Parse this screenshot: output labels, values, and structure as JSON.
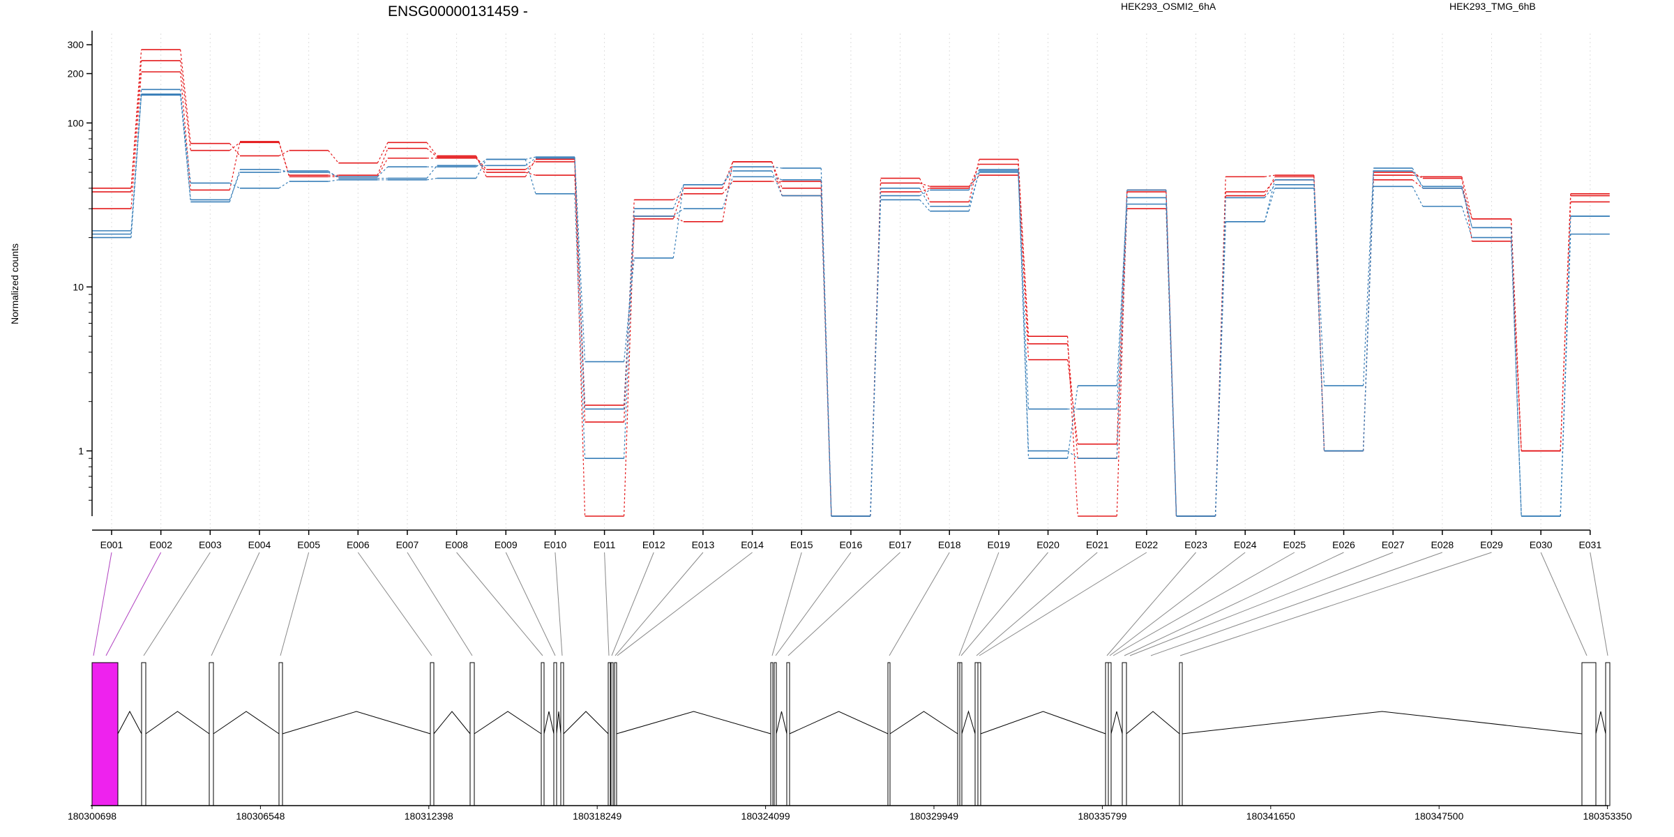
{
  "chart_data": {
    "type": "line",
    "title": "ENSG00000131459 -",
    "ylabel": "Normalized counts",
    "y_scale": "log",
    "ylim": [
      0.4,
      380
    ],
    "y_ticks": [
      {
        "value": 1,
        "label": "1"
      },
      {
        "value": 10,
        "label": "10"
      },
      {
        "value": 100,
        "label": "100"
      },
      {
        "value": 200,
        "label": "200"
      },
      {
        "value": 300,
        "label": "300"
      }
    ],
    "categories": [
      "E001",
      "E002",
      "E003",
      "E004",
      "E005",
      "E006",
      "E007",
      "E008",
      "E009",
      "E010",
      "E011",
      "E012",
      "E013",
      "E014",
      "E015",
      "E016",
      "E017",
      "E018",
      "E019",
      "E020",
      "E021",
      "E022",
      "E023",
      "E024",
      "E025",
      "E026",
      "E027",
      "E028",
      "E029",
      "E030",
      "E031"
    ],
    "legend": [
      "HEK293_OSMI2_6hA",
      "HEK293_TMG_6hB"
    ],
    "legend_colors": [
      "#e41a1c",
      "#377eb8"
    ],
    "legend_position": "top",
    "grid": "vertical dotted",
    "series": [
      {
        "group": 0,
        "color": "#e41a1c",
        "values": [
          40,
          280,
          75,
          63,
          68,
          57,
          76,
          63,
          47,
          60,
          1.5,
          34,
          37,
          44,
          44,
          0.4,
          43,
          41,
          48,
          3.6,
          1.1,
          39,
          0.4,
          36,
          47,
          1.0,
          48,
          47,
          26,
          1.0,
          36
        ]
      },
      {
        "group": 0,
        "color": "#e41a1c",
        "values": [
          38,
          240,
          68,
          76,
          48,
          48,
          70,
          62,
          52,
          58,
          0.4,
          27,
          25,
          58,
          40,
          0.4,
          46,
          33,
          60,
          4.5,
          0.9,
          30,
          0.4,
          47,
          48,
          1.0,
          50,
          46,
          19,
          1.0,
          37
        ]
      },
      {
        "group": 0,
        "color": "#e41a1c",
        "values": [
          30,
          205,
          39,
          77,
          47,
          47,
          61,
          61,
          50,
          48,
          1.9,
          26,
          40,
          58,
          36,
          0.4,
          38,
          40,
          56,
          5.0,
          0.4,
          38,
          0.4,
          38,
          45,
          1.0,
          45,
          40,
          26,
          1.0,
          33
        ]
      },
      {
        "group": 1,
        "color": "#377eb8",
        "values": [
          21,
          160,
          33,
          52,
          50,
          47,
          54,
          54,
          60,
          62,
          3.5,
          15,
          42,
          54,
          53,
          0.4,
          36,
          39,
          52,
          0.9,
          2.5,
          35,
          0.4,
          25,
          45,
          2.5,
          53,
          40,
          23,
          0.4,
          21
        ]
      },
      {
        "group": 1,
        "color": "#377eb8",
        "values": [
          20,
          150,
          43,
          40,
          44,
          45,
          45,
          46,
          60,
          37,
          0.9,
          27,
          30,
          47,
          45,
          0.4,
          34,
          29,
          51,
          1.0,
          0.9,
          32,
          0.4,
          25,
          40,
          1.0,
          41,
          31,
          20,
          0.4,
          27
        ]
      },
      {
        "group": 1,
        "color": "#377eb8",
        "values": [
          22,
          148,
          34,
          50,
          51,
          46,
          46,
          55,
          55,
          61,
          1.8,
          30,
          42,
          51,
          36,
          0.4,
          40,
          31,
          50,
          1.8,
          1.8,
          39,
          0.4,
          35,
          42,
          1.0,
          51,
          41,
          23,
          0.4,
          27
        ]
      }
    ],
    "gene_model": {
      "coordinate_labels": [
        "180300698",
        "180306548",
        "180312398",
        "180318249",
        "180324099",
        "180329949",
        "180335799",
        "180341650",
        "180347500",
        "180353350"
      ],
      "highlight_color": "#ee22ee"
    }
  }
}
